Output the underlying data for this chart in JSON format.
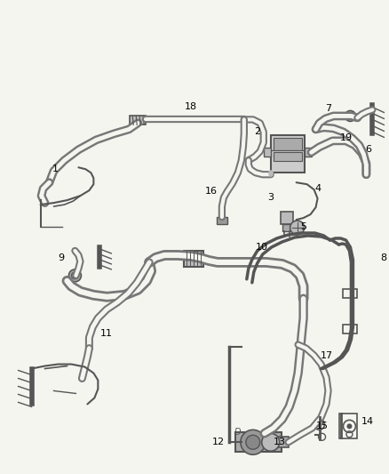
{
  "bg_color": "#f5f5f0",
  "line_color": "#555555",
  "label_color": "#000000",
  "fig_width": 4.38,
  "fig_height": 5.33,
  "dpi": 100
}
